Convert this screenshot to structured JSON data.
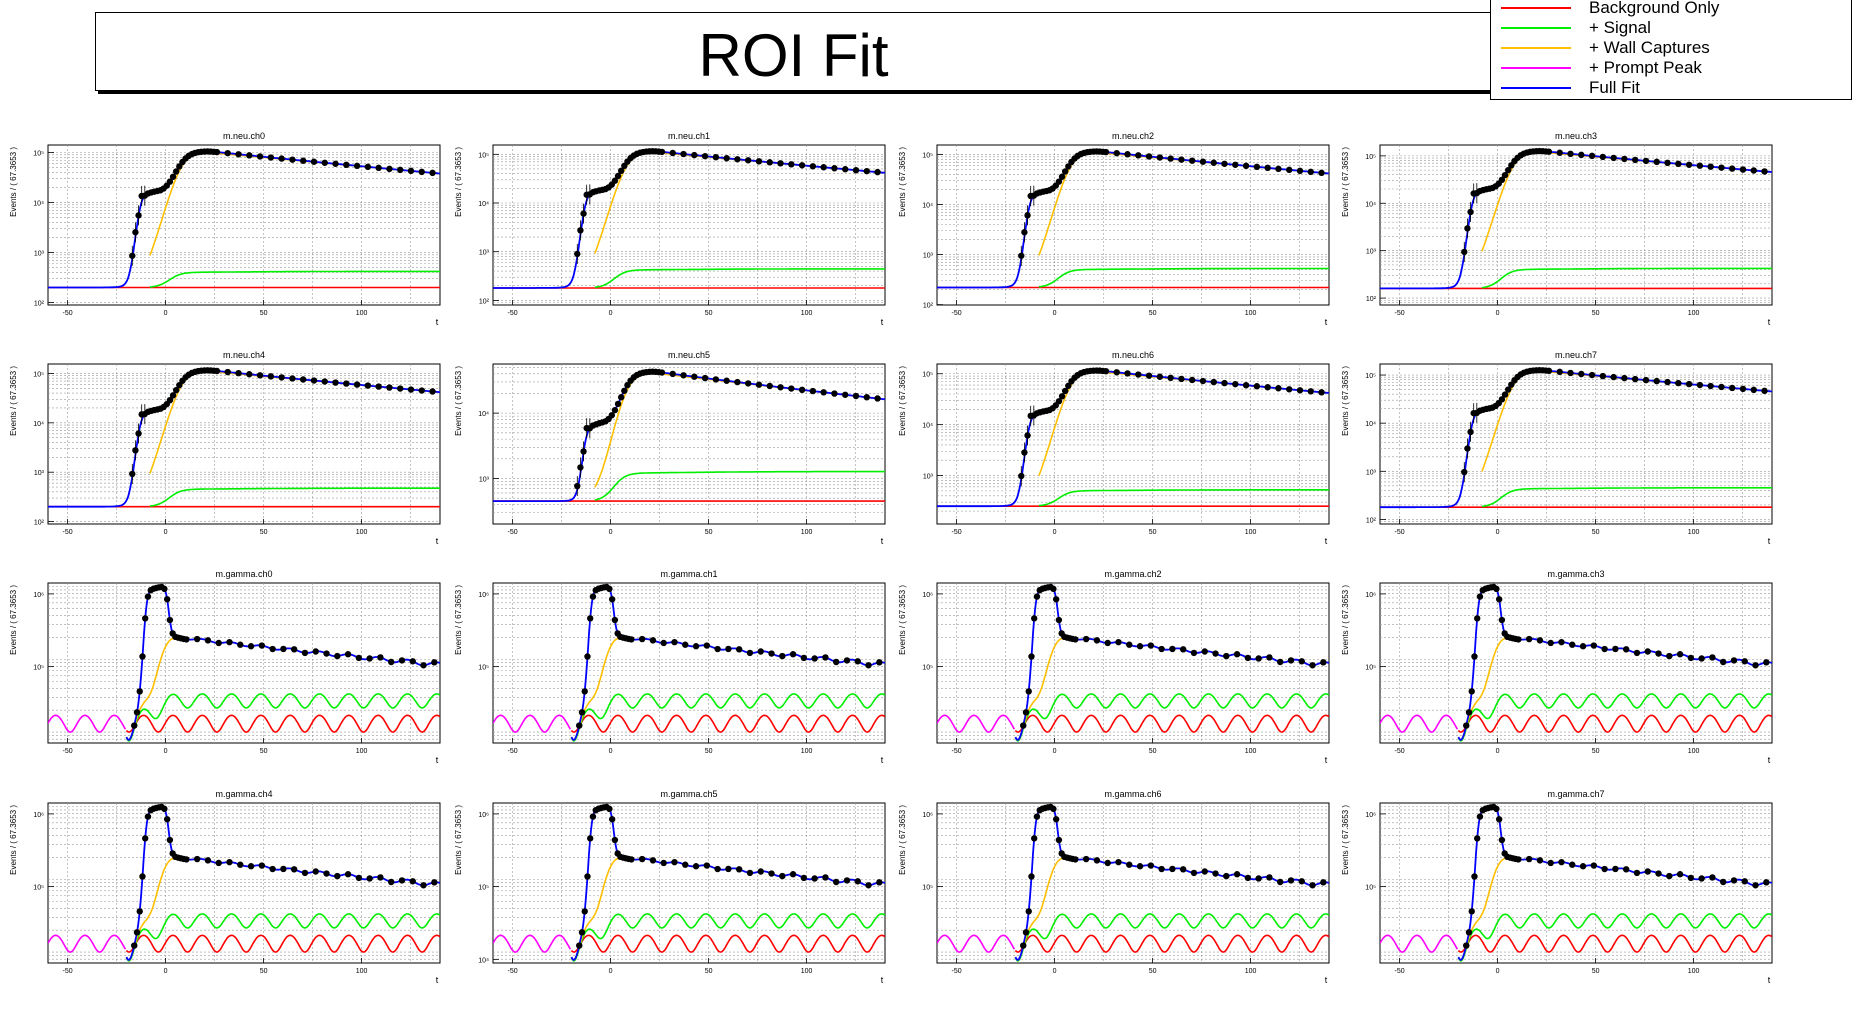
{
  "title": "ROI Fit",
  "legend": [
    {
      "label": "Background Only",
      "color": "#ff0000"
    },
    {
      "label": "+ Signal",
      "color": "#00ee00"
    },
    {
      "label": "+ Wall Captures",
      "color": "#ffbf00"
    },
    {
      "label": "+ Prompt Peak",
      "color": "#ff00ff"
    },
    {
      "label": "Full Fit",
      "color": "#0000ff"
    }
  ],
  "chart_data": [
    {
      "type": "line",
      "title": "m.neu.ch0",
      "xlabel": "t",
      "ylabel": "Events / ( 67.3653 )",
      "xlim": [
        -60,
        140
      ],
      "xticks": [
        -50,
        0,
        50,
        100
      ],
      "scale": "log",
      "yticks": [
        "10⁵",
        "10⁴",
        "10³",
        "10²"
      ],
      "kind": "neu",
      "bg": 200,
      "sig": 400,
      "peak": 100000
    },
    {
      "type": "line",
      "title": "m.neu.ch1",
      "xlabel": "t",
      "ylabel": "Events / ( 67.3653 )",
      "xlim": [
        -60,
        140
      ],
      "xticks": [
        -50,
        0,
        50,
        100
      ],
      "scale": "log",
      "yticks": [
        "10⁵",
        "10⁴",
        "10³",
        "10²"
      ],
      "kind": "neu",
      "bg": 180,
      "sig": 420,
      "peak": 110000
    },
    {
      "type": "line",
      "title": "m.neu.ch2",
      "xlabel": "t",
      "ylabel": "Events / ( 67.3653 )",
      "xlim": [
        -60,
        140
      ],
      "xticks": [
        -50,
        0,
        50,
        100
      ],
      "scale": "log",
      "yticks": [
        "10⁵",
        "10⁴",
        "10³",
        "10²"
      ],
      "kind": "neu",
      "bg": 220,
      "sig": 500,
      "peak": 110000
    },
    {
      "type": "line",
      "title": "m.neu.ch3",
      "xlabel": "t",
      "ylabel": "Events / ( 67.3653 )",
      "xlim": [
        -60,
        140
      ],
      "xticks": [
        -50,
        0,
        50,
        100
      ],
      "scale": "log",
      "yticks": [
        "10⁵",
        "10⁴",
        "10³",
        "10²"
      ],
      "kind": "neu",
      "bg": 160,
      "sig": 400,
      "peak": 120000
    },
    {
      "type": "line",
      "title": "m.neu.ch4",
      "xlabel": "t",
      "ylabel": "Events / ( 67.3653 )",
      "xlim": [
        -60,
        140
      ],
      "xticks": [
        -50,
        0,
        50,
        100
      ],
      "scale": "log",
      "yticks": [
        "10⁵",
        "10⁴",
        "10³",
        "10²"
      ],
      "kind": "neu",
      "bg": 200,
      "sig": 450,
      "peak": 110000
    },
    {
      "type": "line",
      "title": "m.neu.ch5",
      "xlabel": "t",
      "ylabel": "Events / ( 67.3653 )",
      "xlim": [
        -60,
        140
      ],
      "xticks": [
        -50,
        0,
        50,
        100
      ],
      "scale": "log",
      "yticks": [
        "10⁴",
        "10³",
        "10²"
      ],
      "kind": "neu",
      "bg": 450,
      "sig": 1200,
      "peak": 40000
    },
    {
      "type": "line",
      "title": "m.neu.ch6",
      "xlabel": "t",
      "ylabel": "Events / ( 67.3653 )",
      "xlim": [
        -60,
        140
      ],
      "xticks": [
        -50,
        0,
        50,
        100
      ],
      "scale": "log",
      "yticks": [
        "10⁵",
        "10⁴",
        "10³",
        "10²"
      ],
      "kind": "neu",
      "bg": 250,
      "sig": 500,
      "peak": 110000
    },
    {
      "type": "line",
      "title": "m.neu.ch7",
      "xlabel": "t",
      "ylabel": "Events / ( 67.3653 )",
      "xlim": [
        -60,
        140
      ],
      "xticks": [
        -50,
        0,
        50,
        100
      ],
      "scale": "log",
      "yticks": [
        "10⁵",
        "10⁴",
        "10³",
        "10²"
      ],
      "kind": "neu",
      "bg": 180,
      "sig": 430,
      "peak": 120000
    },
    {
      "type": "line",
      "title": "m.gamma.ch0",
      "xlabel": "t",
      "ylabel": "Events / ( 67.3653 )",
      "xlim": [
        -60,
        140
      ],
      "xticks": [
        -50,
        0,
        50,
        100
      ],
      "scale": "log",
      "yticks": [
        "10⁶",
        "10⁵"
      ],
      "kind": "gamma"
    },
    {
      "type": "line",
      "title": "m.gamma.ch1",
      "xlabel": "t",
      "ylabel": "Events / ( 67.3653 )",
      "xlim": [
        -60,
        140
      ],
      "xticks": [
        -50,
        0,
        50,
        100
      ],
      "scale": "log",
      "yticks": [
        "10⁶",
        "10⁵"
      ],
      "kind": "gamma"
    },
    {
      "type": "line",
      "title": "m.gamma.ch2",
      "xlabel": "t",
      "ylabel": "Events / ( 67.3653 )",
      "xlim": [
        -60,
        140
      ],
      "xticks": [
        -50,
        0,
        50,
        100
      ],
      "scale": "log",
      "yticks": [
        "10⁶",
        "10⁵"
      ],
      "kind": "gamma"
    },
    {
      "type": "line",
      "title": "m.gamma.ch3",
      "xlabel": "t",
      "ylabel": "Events / ( 67.3653 )",
      "xlim": [
        -60,
        140
      ],
      "xticks": [
        -50,
        0,
        50,
        100
      ],
      "scale": "log",
      "yticks": [
        "10⁶",
        "10⁵"
      ],
      "kind": "gamma"
    },
    {
      "type": "line",
      "title": "m.gamma.ch4",
      "xlabel": "t",
      "ylabel": "Events / ( 67.3653 )",
      "xlim": [
        -60,
        140
      ],
      "xticks": [
        -50,
        0,
        50,
        100
      ],
      "scale": "log",
      "yticks": [
        "10⁶",
        "10⁵"
      ],
      "kind": "gamma"
    },
    {
      "type": "line",
      "title": "m.gamma.ch5",
      "xlabel": "t",
      "ylabel": "Events / ( 67.3653 )",
      "xlim": [
        -60,
        140
      ],
      "xticks": [
        -50,
        0,
        50,
        100
      ],
      "scale": "log",
      "yticks": [
        "10⁶",
        "10⁵",
        "10⁴"
      ],
      "kind": "gamma"
    },
    {
      "type": "line",
      "title": "m.gamma.ch6",
      "xlabel": "t",
      "ylabel": "Events / ( 67.3653 )",
      "xlim": [
        -60,
        140
      ],
      "xticks": [
        -50,
        0,
        50,
        100
      ],
      "scale": "log",
      "yticks": [
        "10⁶",
        "10⁵"
      ],
      "kind": "gamma"
    },
    {
      "type": "line",
      "title": "m.gamma.ch7",
      "xlabel": "t",
      "ylabel": "Events / ( 67.3653 )",
      "xlim": [
        -60,
        140
      ],
      "xticks": [
        -50,
        0,
        50,
        100
      ],
      "scale": "log",
      "yticks": [
        "10⁶",
        "10⁵"
      ],
      "kind": "gamma"
    }
  ]
}
